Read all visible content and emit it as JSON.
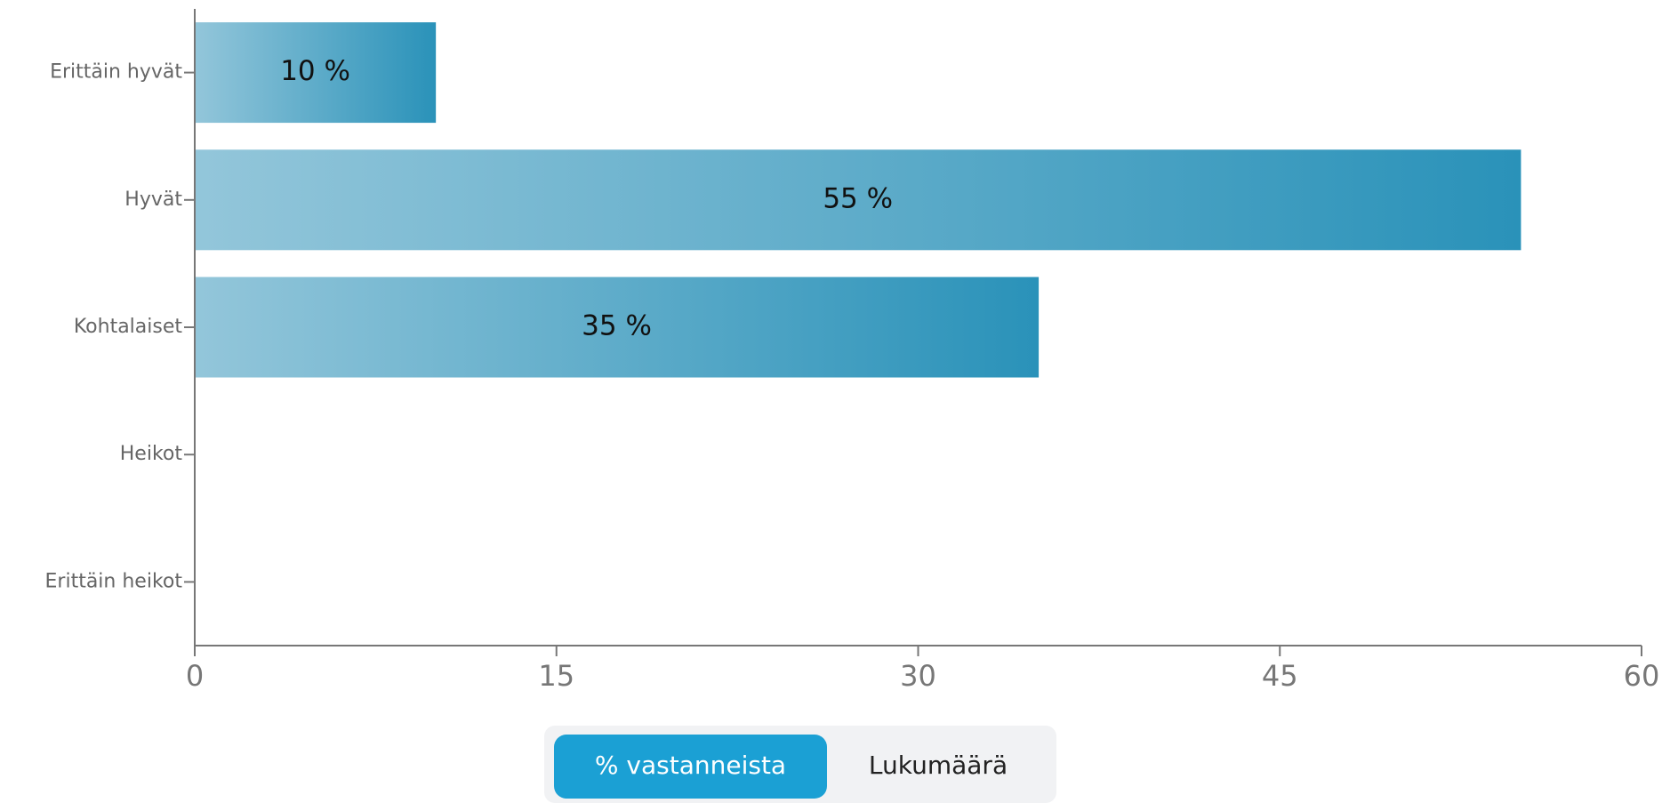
{
  "chart_data": {
    "type": "bar",
    "orientation": "horizontal",
    "categories": [
      "Erittäin hyvät",
      "Hyvät",
      "Kohtalaiset",
      "Heikot",
      "Erittäin heikot"
    ],
    "values": [
      10,
      55,
      35,
      0,
      0
    ],
    "value_labels": [
      "10 %",
      "55 %",
      "35 %",
      null,
      null
    ],
    "color": "#2a92b9",
    "xlim": [
      0,
      60
    ],
    "xticks": [
      0,
      15,
      30,
      45,
      60
    ]
  },
  "toggle": {
    "options": [
      "% vastanneista",
      "Lukumäärä"
    ],
    "selected": 0
  }
}
